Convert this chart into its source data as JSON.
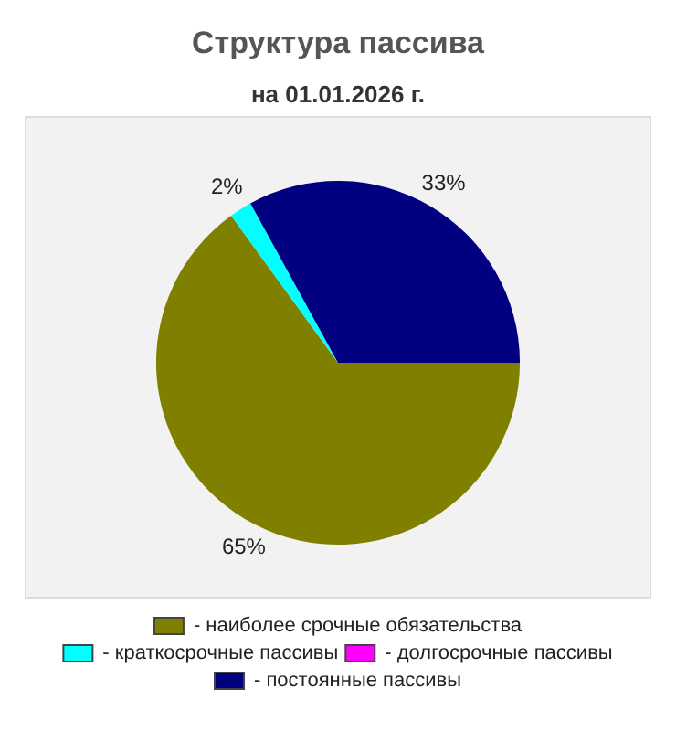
{
  "chart_data": {
    "type": "pie",
    "title": "Структура пассива",
    "subtitle": "на 01.01.2026 г.",
    "categories": [
      "- наиболее срочные обязательства",
      "- краткосрочные пассивы",
      "- долгосрочные пассивы",
      "- постоянные пассивы"
    ],
    "values": [
      65,
      2,
      0,
      33
    ],
    "colors": [
      "#808000",
      "#00ffff",
      "#ff00ff",
      "#000080"
    ],
    "value_labels": [
      "65%",
      "2%",
      null,
      "33%"
    ],
    "legend": "bottom"
  }
}
